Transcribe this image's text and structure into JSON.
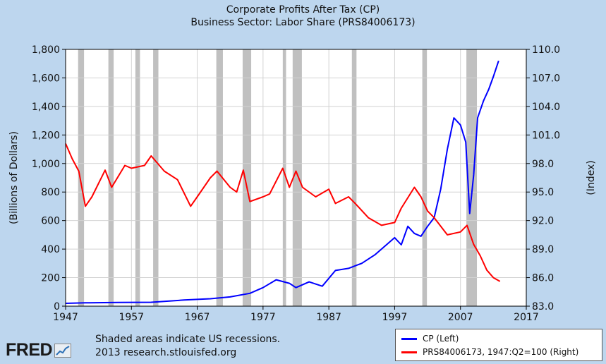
{
  "chart_data": {
    "type": "line",
    "title": "Corporate Profits After Tax (CP)",
    "subtitle": "Business Sector: Labor Share (PRS84006173)",
    "ylabel_left": "(Billions of Dollars)",
    "ylabel_right": "(Index)",
    "xlim": [
      1947,
      2017
    ],
    "ylim_left": [
      0,
      1800
    ],
    "ylim_right": [
      83.0,
      110.0
    ],
    "x_ticks": [
      "1947",
      "1957",
      "1967",
      "1977",
      "1987",
      "1997",
      "2007",
      "2017"
    ],
    "y_ticks_left": [
      "0",
      "200",
      "400",
      "600",
      "800",
      "1,000",
      "1,200",
      "1,400",
      "1,600",
      "1,800"
    ],
    "y_ticks_right": [
      "83.0",
      "86.0",
      "89.0",
      "92.0",
      "95.0",
      "98.0",
      "101.0",
      "104.0",
      "107.0",
      "110.0"
    ],
    "grid": true,
    "recessions": [
      [
        1948.9,
        1949.8
      ],
      [
        1953.5,
        1954.3
      ],
      [
        1957.6,
        1958.3
      ],
      [
        1960.3,
        1961.1
      ],
      [
        1969.9,
        1970.9
      ],
      [
        1973.9,
        1975.2
      ],
      [
        1980.0,
        1980.5
      ],
      [
        1981.5,
        1982.9
      ],
      [
        1990.5,
        1991.2
      ],
      [
        2001.2,
        2001.9
      ],
      [
        2007.9,
        2009.5
      ]
    ],
    "series": [
      {
        "name": "CP (Left)",
        "axis": "left",
        "color": "#0000ff",
        "points": [
          [
            1947,
            20
          ],
          [
            1950,
            23
          ],
          [
            1955,
            26
          ],
          [
            1960,
            27
          ],
          [
            1965,
            43
          ],
          [
            1969,
            52
          ],
          [
            1972,
            65
          ],
          [
            1975,
            90
          ],
          [
            1977,
            130
          ],
          [
            1979,
            185
          ],
          [
            1981,
            160
          ],
          [
            1982,
            130
          ],
          [
            1984,
            170
          ],
          [
            1986,
            140
          ],
          [
            1988,
            250
          ],
          [
            1990,
            265
          ],
          [
            1992,
            300
          ],
          [
            1994,
            360
          ],
          [
            1997,
            480
          ],
          [
            1998,
            430
          ],
          [
            1999,
            560
          ],
          [
            2000,
            510
          ],
          [
            2001,
            490
          ],
          [
            2002,
            560
          ],
          [
            2003,
            620
          ],
          [
            2004,
            820
          ],
          [
            2005,
            1100
          ],
          [
            2006,
            1320
          ],
          [
            2007,
            1270
          ],
          [
            2007.8,
            1150
          ],
          [
            2008.4,
            650
          ],
          [
            2009,
            920
          ],
          [
            2009.6,
            1320
          ],
          [
            2010.5,
            1440
          ],
          [
            2011.3,
            1520
          ],
          [
            2012,
            1610
          ],
          [
            2012.8,
            1720
          ]
        ]
      },
      {
        "name": "PRS84006173, 1947:Q2=100 (Right)",
        "axis": "right",
        "color": "#ff0000",
        "points": [
          [
            1947,
            100.1
          ],
          [
            1948,
            98.5
          ],
          [
            1949,
            97.2
          ],
          [
            1950,
            93.5
          ],
          [
            1951,
            94.5
          ],
          [
            1953,
            97.3
          ],
          [
            1954,
            95.5
          ],
          [
            1956,
            97.8
          ],
          [
            1957,
            97.5
          ],
          [
            1959,
            97.8
          ],
          [
            1960,
            98.8
          ],
          [
            1962,
            97.2
          ],
          [
            1964,
            96.3
          ],
          [
            1966,
            93.5
          ],
          [
            1967,
            94.5
          ],
          [
            1969,
            96.5
          ],
          [
            1970,
            97.2
          ],
          [
            1972,
            95.5
          ],
          [
            1973,
            95.0
          ],
          [
            1974,
            97.3
          ],
          [
            1975,
            94.0
          ],
          [
            1977,
            94.5
          ],
          [
            1978,
            94.8
          ],
          [
            1980,
            97.5
          ],
          [
            1981,
            95.5
          ],
          [
            1982,
            97.2
          ],
          [
            1983,
            95.5
          ],
          [
            1985,
            94.5
          ],
          [
            1987,
            95.3
          ],
          [
            1988,
            93.8
          ],
          [
            1990,
            94.5
          ],
          [
            1991,
            93.8
          ],
          [
            1993,
            92.3
          ],
          [
            1995,
            91.5
          ],
          [
            1997,
            91.8
          ],
          [
            1998,
            93.3
          ],
          [
            2000,
            95.5
          ],
          [
            2001,
            94.5
          ],
          [
            2002,
            93.0
          ],
          [
            2003,
            92.3
          ],
          [
            2005,
            90.5
          ],
          [
            2007,
            90.8
          ],
          [
            2008,
            91.5
          ],
          [
            2009,
            89.5
          ],
          [
            2010,
            88.3
          ],
          [
            2011,
            86.8
          ],
          [
            2012,
            86.0
          ],
          [
            2013,
            85.6
          ]
        ]
      }
    ]
  },
  "legend": {
    "items": [
      {
        "label": "CP (Left)",
        "color": "#0000ff"
      },
      {
        "label": "PRS84006173, 1947:Q2=100 (Right)",
        "color": "#ff0000"
      }
    ]
  },
  "footer": {
    "note_line1": "Shaded areas indicate US recessions.",
    "note_line2": "2013 research.stlouisfed.org",
    "logo": "FRED"
  }
}
